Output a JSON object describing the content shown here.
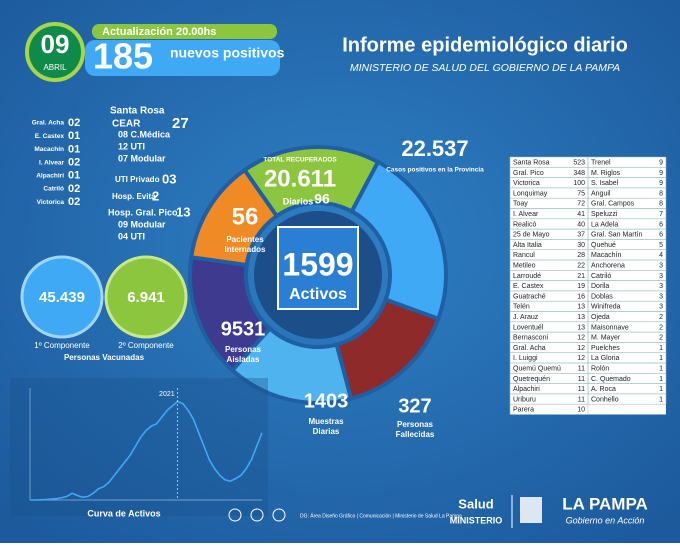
{
  "header": {
    "day": "09",
    "month": "ABRIL",
    "update": "Actualización 20.00hs",
    "new_count": "185",
    "new_label": "nuevos positivos",
    "title": "Informe epidemiológico diario",
    "subtitle": "MINISTERIO DE SALUD DEL GOBIERNO DE LA PAMPA"
  },
  "interior": [
    {
      "name": "Gral. Acha",
      "value": "02"
    },
    {
      "name": "E. Castex",
      "value": "01"
    },
    {
      "name": "Macachín",
      "value": "01"
    },
    {
      "name": "I. Alvear",
      "value": "02"
    },
    {
      "name": "Alpachiri",
      "value": "01"
    },
    {
      "name": "Catriló",
      "value": "02"
    },
    {
      "name": "Victorica",
      "value": "02"
    }
  ],
  "santa_rosa": {
    "title": "Santa Rosa",
    "cear": "CEAR",
    "cear_value": "27",
    "cear_lines": [
      "08 C.Médica",
      "12 UTI",
      "07 Modular"
    ],
    "uti_privado": "UTI Privado",
    "uti_privado_value": "03",
    "evita": "Hosp. Evita",
    "evita_value": "2",
    "pico": "Hosp. Gral. Pico",
    "pico_value": "13",
    "pico_lines": [
      "09 Modular",
      "04 UTI"
    ]
  },
  "vaccines": {
    "first": "45.439",
    "first_label": "1º Componente",
    "second": "6.941",
    "second_label": "2º Componente",
    "label": "Personas Vacunadas"
  },
  "wheel": {
    "recovered_label": "TOTAL RECUPERADOS",
    "recovered": "20.611",
    "daily_label": "Diarios",
    "daily": "96",
    "cases": "22.537",
    "cases_label": "Casos positivos en la Provincia",
    "hospitalized": "56",
    "hospitalized_label": [
      "Pacientes",
      "Internados"
    ],
    "active": "1599",
    "active_label": "Activos",
    "isolated": "9531",
    "isolated_label": [
      "Personas",
      "Aisladas"
    ],
    "samples": "1403",
    "samples_label": [
      "Muestras",
      "Diarias"
    ],
    "deaths": "327",
    "deaths_label": [
      "Personas",
      "Fallecidas"
    ]
  },
  "localities": {
    "left": [
      [
        "Santa Rosa",
        "523"
      ],
      [
        "Gral. Pico",
        "348"
      ],
      [
        "Victorica",
        "100"
      ],
      [
        "Lonquimay",
        "75"
      ],
      [
        "Toay",
        "72"
      ],
      [
        "I. Alvear",
        "41"
      ],
      [
        "Realicó",
        "40"
      ],
      [
        "25 de Mayo",
        "37"
      ],
      [
        "Alta Italia",
        "30"
      ],
      [
        "Rancul",
        "28"
      ],
      [
        "Metileo",
        "22"
      ],
      [
        "Larroudé",
        "21"
      ],
      [
        "E. Castex",
        "19"
      ],
      [
        "Guatraché",
        "16"
      ],
      [
        "Telén",
        "13"
      ],
      [
        "J. Arauz",
        "13"
      ],
      [
        "Loventuél",
        "13"
      ],
      [
        "Bernasconi",
        "12"
      ],
      [
        "Gral. Acha",
        "12"
      ],
      [
        "I. Luiggi",
        "12"
      ],
      [
        "Quemú Quemú",
        "11"
      ],
      [
        "Quetrequén",
        "11"
      ],
      [
        "Alpachiri",
        "11"
      ],
      [
        "Uriburu",
        "11"
      ],
      [
        "Parera",
        "10"
      ]
    ],
    "right": [
      [
        "Trenel",
        "9"
      ],
      [
        "M. Riglos",
        "9"
      ],
      [
        "S. Isabel",
        "9"
      ],
      [
        "Anguil",
        "8"
      ],
      [
        "Gral. Campos",
        "8"
      ],
      [
        "Speluzzi",
        "7"
      ],
      [
        "La Adela",
        "6"
      ],
      [
        "Gral. San Martín",
        "6"
      ],
      [
        "Quehué",
        "5"
      ],
      [
        "Macachín",
        "4"
      ],
      [
        "Anchorena",
        "3"
      ],
      [
        "Catriló",
        "3"
      ],
      [
        "Dorila",
        "3"
      ],
      [
        "Doblas",
        "3"
      ],
      [
        "Winifreda",
        "3"
      ],
      [
        "Ojeda",
        "2"
      ],
      [
        "Maisonnave",
        "2"
      ],
      [
        "M. Mayer",
        "2"
      ],
      [
        "Puelches",
        "1"
      ],
      [
        "La Gloria",
        "1"
      ],
      [
        "Rolón",
        "1"
      ],
      [
        "C. Quemado",
        "1"
      ],
      [
        "A. Roca",
        "1"
      ],
      [
        "Conhello",
        "1"
      ]
    ]
  },
  "curve": {
    "type": "line",
    "title": "Curva de Activos",
    "annotation": "2021",
    "color": "#3fa9f5",
    "values": [
      0,
      0,
      5,
      10,
      20,
      30,
      50,
      80,
      150,
      100,
      60,
      80,
      150,
      250,
      300,
      400,
      550,
      700,
      850,
      1000,
      1200,
      1400,
      1550,
      1650,
      1700,
      1850,
      2000,
      2100,
      2200,
      2150,
      2000,
      1800,
      1500,
      1200,
      900,
      700,
      550,
      450,
      420,
      480,
      550,
      700,
      900,
      1200,
      1500
    ],
    "ylim": [
      0,
      2500
    ]
  },
  "footer": {
    "credits": "DG: Área Diseño Gráfico | Comunicación | Ministerio de Salud La Pampa",
    "salud": "Salud",
    "ministerio": "MINISTERIO",
    "province": "LA PAMPA",
    "slogan": "Gobierno en Acción"
  }
}
